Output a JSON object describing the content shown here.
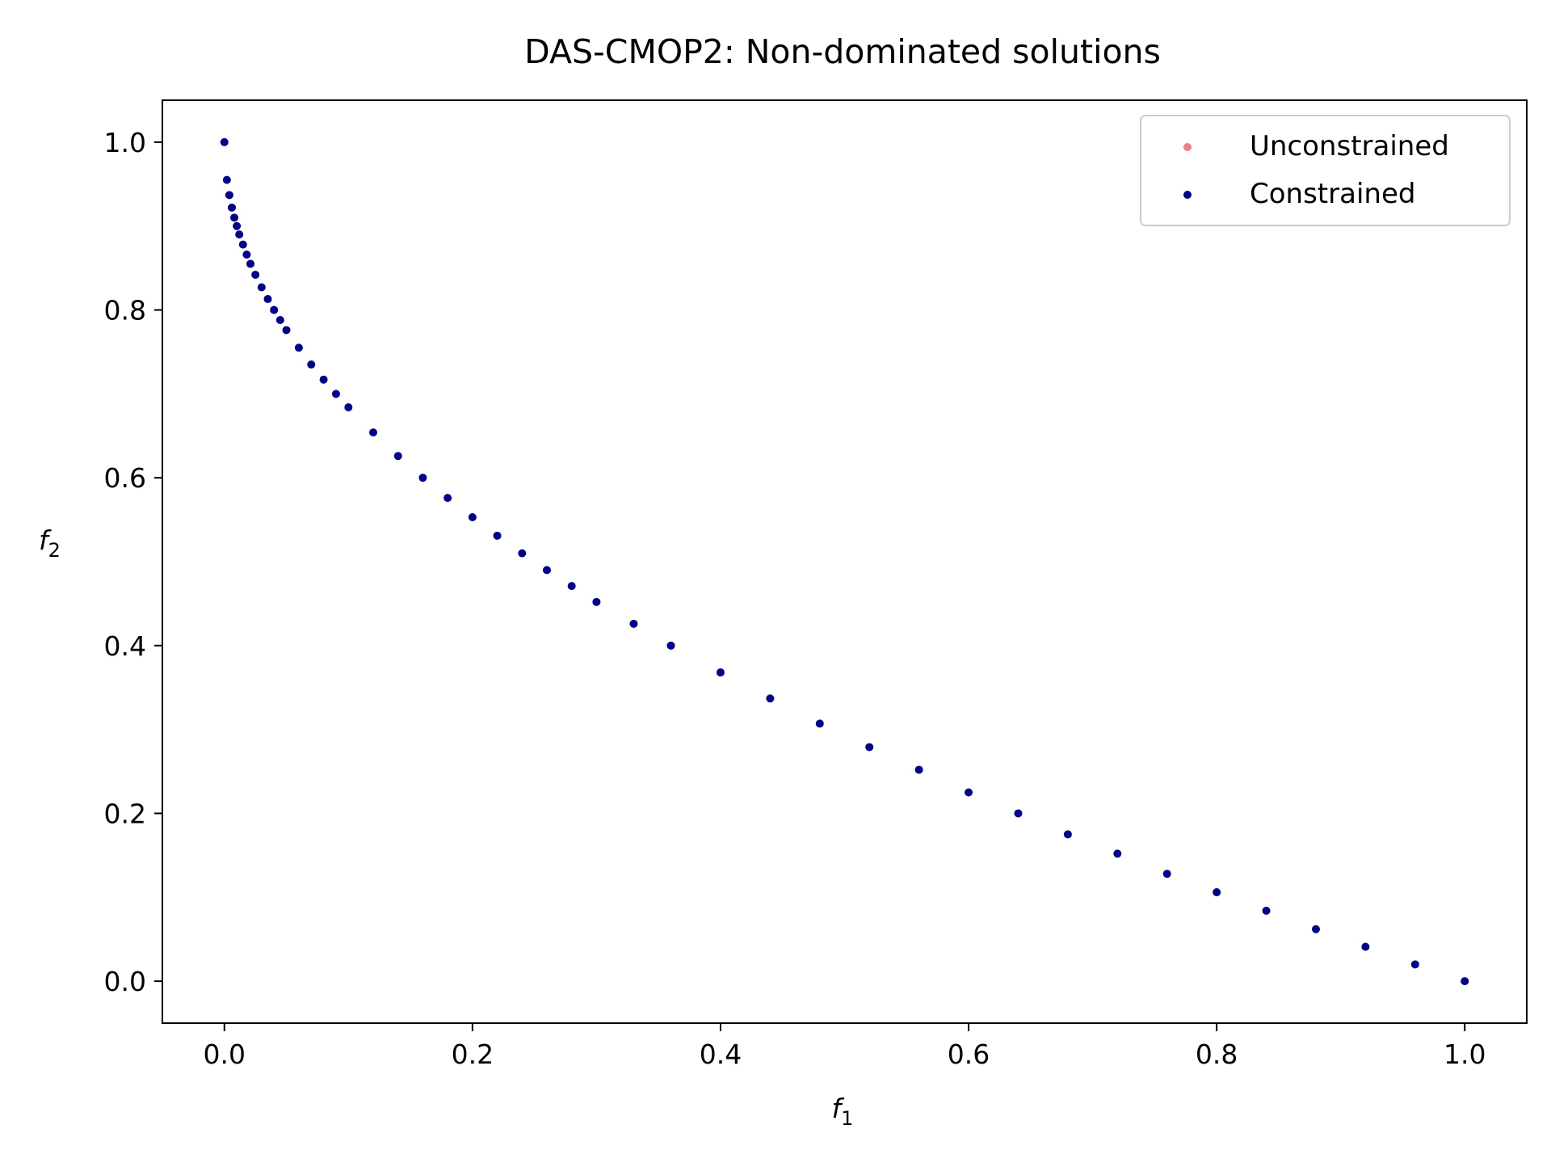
{
  "chart_data": {
    "type": "scatter",
    "title": "DAS-CMOP2: Non-dominated solutions",
    "xlabel": {
      "base": "f",
      "sub": "1"
    },
    "ylabel": {
      "base": "f",
      "sub": "2"
    },
    "xlim": [
      -0.05,
      1.05
    ],
    "ylim": [
      -0.05,
      1.05
    ],
    "xticks": [
      0.0,
      0.2,
      0.4,
      0.6,
      0.8,
      1.0
    ],
    "xtick_labels": [
      "0.0",
      "0.2",
      "0.4",
      "0.6",
      "0.8",
      "1.0"
    ],
    "yticks": [
      0.0,
      0.2,
      0.4,
      0.6,
      0.8,
      1.0
    ],
    "ytick_labels": [
      "0.0",
      "0.2",
      "0.4",
      "0.6",
      "0.8",
      "1.0"
    ],
    "grid": false,
    "legend_position": "top-right",
    "series": [
      {
        "name": "Unconstrained",
        "color": "#f08080",
        "points": []
      },
      {
        "name": "Constrained",
        "color": "#00008b",
        "points": [
          [
            0.0,
            1.0
          ],
          [
            0.002,
            0.955
          ],
          [
            0.004,
            0.937
          ],
          [
            0.006,
            0.922
          ],
          [
            0.008,
            0.91
          ],
          [
            0.01,
            0.9
          ],
          [
            0.012,
            0.89
          ],
          [
            0.015,
            0.878
          ],
          [
            0.018,
            0.866
          ],
          [
            0.021,
            0.855
          ],
          [
            0.025,
            0.842
          ],
          [
            0.03,
            0.827
          ],
          [
            0.035,
            0.813
          ],
          [
            0.04,
            0.8
          ],
          [
            0.045,
            0.788
          ],
          [
            0.05,
            0.776
          ],
          [
            0.06,
            0.755
          ],
          [
            0.07,
            0.735
          ],
          [
            0.08,
            0.717
          ],
          [
            0.09,
            0.7
          ],
          [
            0.1,
            0.684
          ],
          [
            0.12,
            0.654
          ],
          [
            0.14,
            0.626
          ],
          [
            0.16,
            0.6
          ],
          [
            0.18,
            0.576
          ],
          [
            0.2,
            0.553
          ],
          [
            0.22,
            0.531
          ],
          [
            0.24,
            0.51
          ],
          [
            0.26,
            0.49
          ],
          [
            0.28,
            0.471
          ],
          [
            0.3,
            0.452
          ],
          [
            0.33,
            0.426
          ],
          [
            0.36,
            0.4
          ],
          [
            0.4,
            0.368
          ],
          [
            0.44,
            0.337
          ],
          [
            0.48,
            0.307
          ],
          [
            0.52,
            0.279
          ],
          [
            0.56,
            0.252
          ],
          [
            0.6,
            0.225
          ],
          [
            0.64,
            0.2
          ],
          [
            0.68,
            0.175
          ],
          [
            0.72,
            0.152
          ],
          [
            0.76,
            0.128
          ],
          [
            0.8,
            0.106
          ],
          [
            0.84,
            0.084
          ],
          [
            0.88,
            0.062
          ],
          [
            0.92,
            0.041
          ],
          [
            0.96,
            0.02
          ],
          [
            1.0,
            0.0
          ]
        ]
      }
    ]
  }
}
